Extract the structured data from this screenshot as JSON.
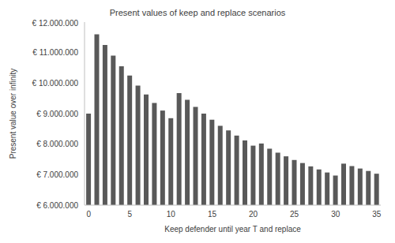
{
  "chart_data": {
    "type": "bar",
    "title": "Present values of keep and replace scenarios",
    "x_label": "Keep defender until year T and replace",
    "y_label": "Present value over infinity",
    "categories": [
      "0",
      null,
      null,
      null,
      null,
      "5",
      null,
      null,
      null,
      null,
      "10",
      null,
      null,
      null,
      null,
      "15",
      null,
      null,
      null,
      null,
      "20",
      null,
      null,
      null,
      null,
      "25",
      null,
      null,
      null,
      null,
      "30",
      null,
      null,
      null,
      null,
      "35"
    ],
    "values": [
      9000000,
      11600000,
      11250000,
      10900000,
      10550000,
      10250000,
      9920000,
      9630000,
      9350000,
      9100000,
      8850000,
      9670000,
      9450000,
      9220000,
      9000000,
      8800000,
      8600000,
      8450000,
      8280000,
      8120000,
      7950000,
      8020000,
      7850000,
      7720000,
      7600000,
      7480000,
      7380000,
      7270000,
      7170000,
      7070000,
      6970000,
      7360000,
      7280000,
      7200000,
      7120000,
      7030000
    ],
    "color": "#595959",
    "ylim": [
      6000000,
      12000000
    ],
    "yticks": [
      {
        "value": 6000000,
        "label": "€ 6.000.000"
      },
      {
        "value": 7000000,
        "label": "€ 7.000.000"
      },
      {
        "value": 8000000,
        "label": "€ 8.000.000"
      },
      {
        "value": 9000000,
        "label": "€ 9.000.000"
      },
      {
        "value": 10000000,
        "label": "€ 10.000.000"
      },
      {
        "value": 11000000,
        "label": "€ 11.000.000"
      },
      {
        "value": 12000000,
        "label": "€ 12.000.000"
      }
    ],
    "grid": false
  }
}
